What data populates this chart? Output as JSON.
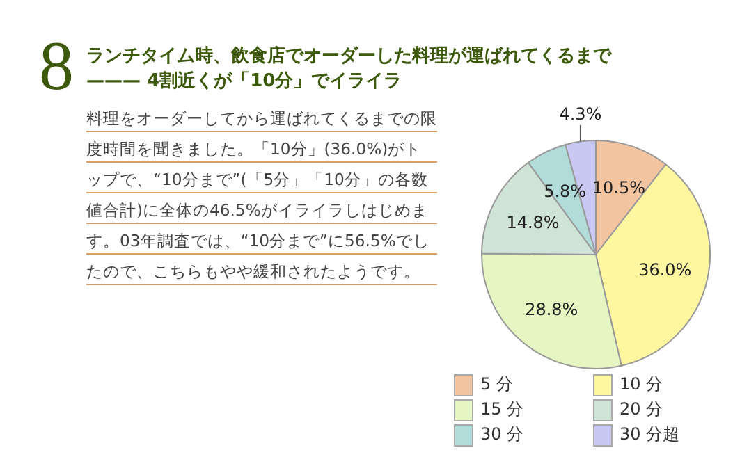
{
  "chart_data": {
    "type": "pie",
    "title": "ランチタイム時、飲食店でオーダーした料理が運ばれてくるまで\n——— 4割近くが「10分」でイライラ",
    "annotations": [
      "8",
      "料理をオーダーしてから運ばれてくるまでの限度時間を聞きました。「10分」(36.0%)がトップで、“10分まで”(「5分」「10分」の各数値合計)に全体の46.5%がイライラしはじめます。03年調査では、“10分まで”に56.5%でしたので、こちらもやや緩和されたようです。"
    ],
    "categories": [
      "5 分",
      "10 分",
      "15 分",
      "20 分",
      "30 分",
      "30 分超"
    ],
    "values": [
      10.5,
      36.0,
      28.8,
      14.8,
      5.8,
      4.3
    ],
    "value_labels": [
      "10.5%",
      "36.0%",
      "28.8%",
      "14.8%",
      "5.8%",
      "4.3%"
    ],
    "colors": [
      "#f2c4a0",
      "#fff7a0",
      "#e6f6c2",
      "#cfe4d6",
      "#b2dcda",
      "#c8c8f2"
    ],
    "legend": "bottom"
  }
}
